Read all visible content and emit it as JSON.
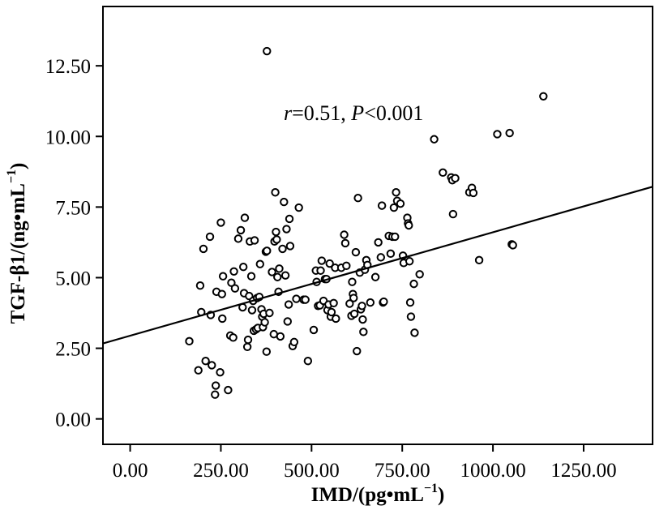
{
  "chart_data": {
    "type": "scatter",
    "xlabel_main": "IMD/(pg•mL",
    "xlabel_sup": "−1",
    "xlabel_end": ")",
    "ylabel_main": "TGF-β1/(ng•mL",
    "ylabel_sup": "−1",
    "ylabel_end": ")",
    "annotation": {
      "r_sym": "r",
      "r_text": "=0.51, ",
      "p_sym": "P",
      "p_text": "<0.001"
    },
    "xlim": [
      -75,
      1440
    ],
    "ylim": [
      -0.9,
      14.6
    ],
    "x_ticks": [
      0,
      250,
      500,
      750,
      1000,
      1250
    ],
    "x_tick_labels": [
      "0.00",
      "250.00",
      "500.00",
      "750.00",
      "1000.00",
      "1250.00"
    ],
    "y_ticks": [
      0,
      2.5,
      5,
      7.5,
      10,
      12.5
    ],
    "y_tick_labels": [
      "0.00",
      "2.50",
      "5.00",
      "7.50",
      "10.00",
      "12.50"
    ],
    "grid": false,
    "fit_line": {
      "x": [
        -75,
        1440
      ],
      "y": [
        2.67,
        8.22
      ]
    },
    "points": [
      [
        163,
        2.75
      ],
      [
        188,
        1.72
      ],
      [
        193,
        4.72
      ],
      [
        196,
        3.78
      ],
      [
        202,
        6.02
      ],
      [
        208,
        2.05
      ],
      [
        220,
        6.45
      ],
      [
        222,
        3.68
      ],
      [
        225,
        1.9
      ],
      [
        234,
        0.86
      ],
      [
        236,
        1.18
      ],
      [
        238,
        4.5
      ],
      [
        248,
        1.65
      ],
      [
        250,
        6.95
      ],
      [
        253,
        4.42
      ],
      [
        254,
        3.55
      ],
      [
        256,
        5.05
      ],
      [
        270,
        1.02
      ],
      [
        276,
        2.95
      ],
      [
        279,
        4.82
      ],
      [
        284,
        2.88
      ],
      [
        286,
        5.22
      ],
      [
        289,
        4.62
      ],
      [
        298,
        6.38
      ],
      [
        305,
        6.68
      ],
      [
        310,
        3.95
      ],
      [
        312,
        5.38
      ],
      [
        314,
        4.45
      ],
      [
        316,
        7.12
      ],
      [
        323,
        2.55
      ],
      [
        325,
        2.8
      ],
      [
        328,
        4.35
      ],
      [
        330,
        6.28
      ],
      [
        334,
        5.05
      ],
      [
        336,
        3.85
      ],
      [
        339,
        4.18
      ],
      [
        341,
        3.12
      ],
      [
        343,
        6.32
      ],
      [
        347,
        3.17
      ],
      [
        350,
        4.28
      ],
      [
        352,
        3.22
      ],
      [
        356,
        4.32
      ],
      [
        358,
        5.48
      ],
      [
        362,
        3.88
      ],
      [
        364,
        3.62
      ],
      [
        366,
        3.25
      ],
      [
        368,
        3.72
      ],
      [
        371,
        3.42
      ],
      [
        374,
        5.92
      ],
      [
        377,
        5.95
      ],
      [
        376,
        2.38
      ],
      [
        377,
        13.02
      ],
      [
        384,
        3.75
      ],
      [
        391,
        5.2
      ],
      [
        396,
        3.0
      ],
      [
        398,
        6.28
      ],
      [
        400,
        8.02
      ],
      [
        402,
        6.62
      ],
      [
        404,
        6.35
      ],
      [
        406,
        5.02
      ],
      [
        409,
        4.5
      ],
      [
        411,
        5.32
      ],
      [
        414,
        2.92
      ],
      [
        420,
        6.02
      ],
      [
        424,
        7.68
      ],
      [
        428,
        5.08
      ],
      [
        431,
        6.72
      ],
      [
        434,
        3.45
      ],
      [
        437,
        4.05
      ],
      [
        439,
        7.08
      ],
      [
        441,
        6.12
      ],
      [
        448,
        2.58
      ],
      [
        452,
        2.72
      ],
      [
        458,
        4.25
      ],
      [
        465,
        7.48
      ],
      [
        478,
        4.22
      ],
      [
        483,
        4.22
      ],
      [
        490,
        2.05
      ],
      [
        506,
        3.15
      ],
      [
        512,
        5.25
      ],
      [
        514,
        4.85
      ],
      [
        518,
        4.0
      ],
      [
        523,
        4.02
      ],
      [
        525,
        5.25
      ],
      [
        528,
        5.6
      ],
      [
        533,
        4.18
      ],
      [
        537,
        4.95
      ],
      [
        541,
        4.95
      ],
      [
        544,
        3.85
      ],
      [
        547,
        4.05
      ],
      [
        550,
        5.5
      ],
      [
        553,
        3.62
      ],
      [
        555,
        3.78
      ],
      [
        561,
        4.1
      ],
      [
        565,
        5.35
      ],
      [
        567,
        3.55
      ],
      [
        582,
        5.35
      ],
      [
        590,
        6.52
      ],
      [
        593,
        6.22
      ],
      [
        596,
        5.42
      ],
      [
        605,
        4.08
      ],
      [
        610,
        3.65
      ],
      [
        612,
        4.85
      ],
      [
        614,
        4.42
      ],
      [
        616,
        4.28
      ],
      [
        618,
        3.72
      ],
      [
        622,
        5.9
      ],
      [
        625,
        2.4
      ],
      [
        628,
        7.82
      ],
      [
        633,
        5.18
      ],
      [
        636,
        3.88
      ],
      [
        639,
        4.0
      ],
      [
        641,
        3.52
      ],
      [
        643,
        3.08
      ],
      [
        647,
        5.28
      ],
      [
        651,
        5.62
      ],
      [
        654,
        5.45
      ],
      [
        662,
        4.12
      ],
      [
        676,
        5.02
      ],
      [
        684,
        6.25
      ],
      [
        691,
        5.72
      ],
      [
        694,
        7.55
      ],
      [
        697,
        4.12
      ],
      [
        699,
        4.15
      ],
      [
        713,
        6.48
      ],
      [
        718,
        5.85
      ],
      [
        723,
        6.45
      ],
      [
        727,
        7.48
      ],
      [
        730,
        6.45
      ],
      [
        733,
        8.02
      ],
      [
        736,
        7.72
      ],
      [
        745,
        7.62
      ],
      [
        752,
        5.78
      ],
      [
        754,
        5.52
      ],
      [
        764,
        7.12
      ],
      [
        766,
        6.92
      ],
      [
        768,
        6.85
      ],
      [
        770,
        5.58
      ],
      [
        772,
        4.12
      ],
      [
        774,
        3.62
      ],
      [
        782,
        4.78
      ],
      [
        784,
        3.05
      ],
      [
        798,
        5.12
      ],
      [
        838,
        9.9
      ],
      [
        862,
        8.72
      ],
      [
        885,
        8.55
      ],
      [
        888,
        8.45
      ],
      [
        890,
        7.25
      ],
      [
        896,
        8.52
      ],
      [
        935,
        8.02
      ],
      [
        942,
        8.18
      ],
      [
        946,
        8.0
      ],
      [
        962,
        5.62
      ],
      [
        1012,
        10.08
      ],
      [
        1046,
        10.12
      ],
      [
        1052,
        6.18
      ],
      [
        1055,
        6.15
      ],
      [
        1139,
        11.42
      ]
    ]
  }
}
